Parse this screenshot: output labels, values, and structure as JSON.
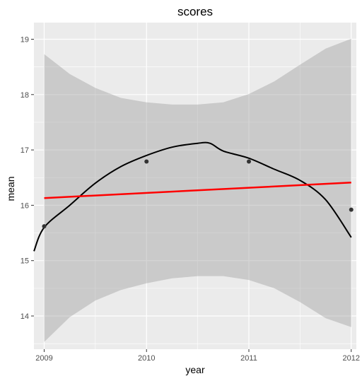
{
  "chart_data": {
    "type": "scatter",
    "title": "scores",
    "xlabel": "year",
    "ylabel": "mean",
    "xlim": [
      2008.9,
      2012.05
    ],
    "ylim": [
      13.4,
      19.3
    ],
    "x_ticks": [
      "2009",
      "2010",
      "2011",
      "2012"
    ],
    "y_ticks": [
      "14",
      "15",
      "16",
      "17",
      "18",
      "19"
    ],
    "grid": true,
    "panel_background": "#ebebeb",
    "points": {
      "x": [
        2009,
        2010,
        2011,
        2012
      ],
      "y": [
        15.62,
        16.79,
        16.79,
        15.92
      ],
      "color": "#333333"
    },
    "linear_fit": {
      "x": [
        2009,
        2012
      ],
      "y": [
        16.13,
        16.41
      ],
      "color": "#ff0000",
      "ci_band": {
        "x": [
          2009,
          2009.25,
          2009.5,
          2009.75,
          2010,
          2010.25,
          2010.5,
          2010.75,
          2011,
          2011.25,
          2011.5,
          2011.75,
          2012
        ],
        "lower": [
          13.53,
          13.98,
          14.28,
          14.47,
          14.59,
          14.68,
          14.72,
          14.72,
          14.65,
          14.5,
          14.25,
          13.96,
          13.8
        ],
        "upper": [
          18.73,
          18.37,
          18.12,
          17.94,
          17.86,
          17.82,
          17.82,
          17.86,
          18.01,
          18.24,
          18.54,
          18.83,
          19.01
        ],
        "color": "#999999"
      }
    },
    "smooth_curve": {
      "x": [
        2008.9,
        2009,
        2009.25,
        2009.5,
        2009.75,
        2010,
        2010.25,
        2010.5,
        2010.62,
        2010.75,
        2011,
        2011.25,
        2011.5,
        2011.75,
        2012
      ],
      "y": [
        15.17,
        15.6,
        16.0,
        16.4,
        16.7,
        16.9,
        17.05,
        17.12,
        17.12,
        16.98,
        16.85,
        16.65,
        16.45,
        16.1,
        15.42
      ],
      "color": "#000000"
    }
  }
}
